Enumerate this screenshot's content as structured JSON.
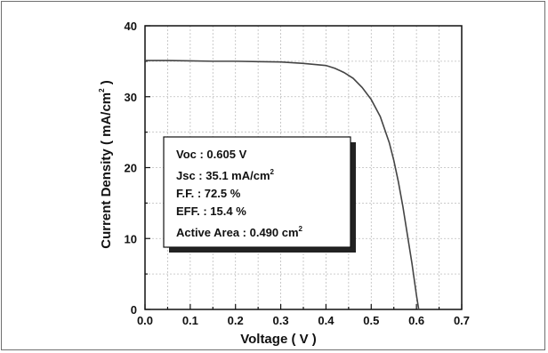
{
  "chart_data": {
    "type": "line",
    "xlabel": "Voltage ( V )",
    "ylabel": "Current Density ( mA/cm2 )",
    "ylabel_main": "Current Density ( mA/cm",
    "ylabel_sup": "2",
    "ylabel_end": " )",
    "xlim": [
      0.0,
      0.7
    ],
    "ylim": [
      0,
      40
    ],
    "x_ticks": [
      "0.0",
      "0.1",
      "0.2",
      "0.3",
      "0.4",
      "0.5",
      "0.6",
      "0.7"
    ],
    "y_ticks": [
      "0",
      "10",
      "20",
      "30",
      "40"
    ],
    "grid": true,
    "series": [
      {
        "x": [
          0.0,
          0.05,
          0.1,
          0.15,
          0.2,
          0.25,
          0.3,
          0.35,
          0.4,
          0.42,
          0.44,
          0.46,
          0.48,
          0.5,
          0.52,
          0.54,
          0.55,
          0.56,
          0.57,
          0.58,
          0.59,
          0.6,
          0.605
        ],
        "y": [
          35.1,
          35.1,
          35.05,
          35.0,
          35.0,
          34.95,
          34.9,
          34.7,
          34.4,
          34.0,
          33.4,
          32.6,
          31.3,
          29.6,
          27.2,
          23.5,
          21.0,
          18.0,
          14.5,
          10.5,
          6.5,
          2.0,
          0.0
        ],
        "color": "#444444"
      }
    ],
    "annotation": {
      "voc_label": "Voc : 0.605 V",
      "jsc_label": "Jsc : 35.1 mA/cm",
      "jsc_sup": "2",
      "ff_label": "F.F. : 72.5 %",
      "eff_label": "EFF. : 15.4 %",
      "area_label": "Active Area : 0.490 cm",
      "area_sup": "2"
    }
  }
}
